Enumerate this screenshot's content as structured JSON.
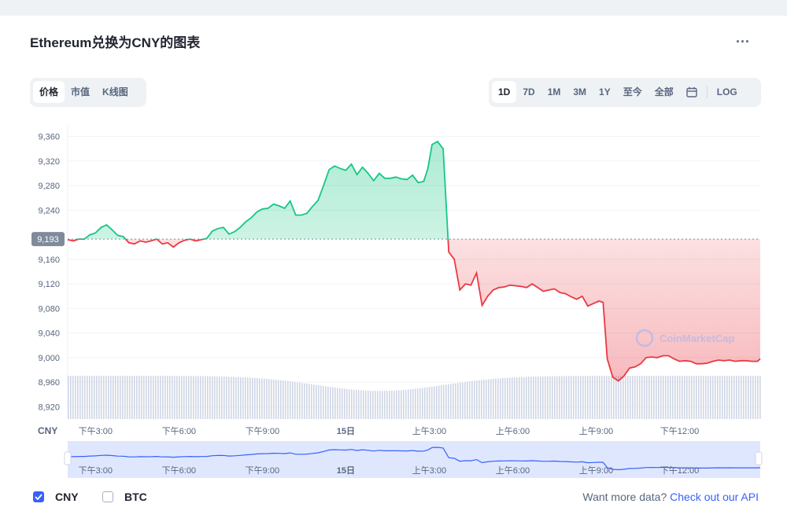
{
  "header": {
    "title": "Ethereum兑换为CNY的图表",
    "more": "..."
  },
  "view_tabs": [
    {
      "label": "价格",
      "active": true
    },
    {
      "label": "市值",
      "active": false
    },
    {
      "label": "K线图",
      "active": false
    }
  ],
  "range_tabs": [
    {
      "label": "1D",
      "active": true
    },
    {
      "label": "7D",
      "active": false
    },
    {
      "label": "1M",
      "active": false
    },
    {
      "label": "3M",
      "active": false
    },
    {
      "label": "1Y",
      "active": false
    },
    {
      "label": "至今",
      "active": false
    },
    {
      "label": "全部",
      "active": false
    }
  ],
  "calendar_icon": "calendar-icon",
  "log_label": "LOG",
  "legend": [
    {
      "label": "CNY",
      "checked": true
    },
    {
      "label": "BTC",
      "checked": false
    }
  ],
  "footer": {
    "text": "Want more data?",
    "link": "Check out our API"
  },
  "colors": {
    "up": "#16c784",
    "down": "#ea3943",
    "accent": "#3861fb",
    "volume": "#cfd6e4",
    "nav_line": "#3861fb"
  },
  "chart_data": {
    "type": "area",
    "currency_label": "CNY",
    "reference_price": 9193,
    "reference_label": "9,193",
    "ylim": [
      8900,
      9380
    ],
    "yticks": [
      9360,
      9320,
      9280,
      9240,
      9160,
      9120,
      9080,
      9040,
      9000,
      8960,
      8920
    ],
    "ytick_labels": [
      "9,360",
      "9,320",
      "9,280",
      "9,240",
      "9,160",
      "9,120",
      "9,080",
      "9,040",
      "9,000",
      "8,960",
      "8,920"
    ],
    "xlim": [
      14.0,
      38.9
    ],
    "xticks": [
      15,
      18,
      21,
      24,
      27,
      30,
      33,
      36
    ],
    "xtick_labels": [
      "下午3:00",
      "下午6:00",
      "下午9:00",
      "15日",
      "上午3:00",
      "上午6:00",
      "上午9:00",
      "下午12:00"
    ],
    "watermark": "CoinMarketCap",
    "series": [
      {
        "x": [
          14.0,
          14.2,
          14.4,
          14.6,
          14.8,
          15.0,
          15.2,
          15.4,
          15.6,
          15.8,
          16.0,
          16.2,
          16.4,
          16.6,
          16.8,
          17.0,
          17.2,
          17.4,
          17.6,
          17.8,
          18.0,
          18.2,
          18.4,
          18.6,
          18.8,
          19.0,
          19.2,
          19.4,
          19.6,
          19.8,
          20.0,
          20.2,
          20.4,
          20.6,
          20.8,
          21.0,
          21.2,
          21.4,
          21.6,
          21.8,
          22.0,
          22.2,
          22.4,
          22.6,
          22.8,
          23.0,
          23.2,
          23.4,
          23.6,
          23.8,
          24.0,
          24.2,
          24.4,
          24.6,
          24.8,
          25.0,
          25.2,
          25.4,
          25.6,
          25.8,
          26.0,
          26.2,
          26.4,
          26.6,
          26.8,
          26.95,
          27.1,
          27.3,
          27.5,
          27.7,
          27.9,
          28.1,
          28.3,
          28.5,
          28.7,
          28.9,
          29.1,
          29.3,
          29.5,
          29.7,
          29.9,
          30.1,
          30.3,
          30.5,
          30.7,
          30.9,
          31.1,
          31.3,
          31.5,
          31.7,
          31.9,
          32.1,
          32.3,
          32.5,
          32.7,
          32.9,
          33.1,
          33.25,
          33.4,
          33.6,
          33.8,
          34.0,
          34.2,
          34.4,
          34.6,
          34.8,
          35.0,
          35.2,
          35.4,
          35.6,
          35.8,
          36.0,
          36.2,
          36.4,
          36.6,
          36.8,
          37.0,
          37.2,
          37.4,
          37.6,
          37.8,
          38.0,
          38.2,
          38.4,
          38.6,
          38.8,
          38.9
        ],
        "values": [
          9192,
          9190,
          9193,
          9193,
          9200,
          9203,
          9212,
          9216,
          9208,
          9199,
          9197,
          9187,
          9185,
          9190,
          9188,
          9190,
          9193,
          9185,
          9187,
          9180,
          9187,
          9191,
          9193,
          9190,
          9192,
          9194,
          9206,
          9210,
          9212,
          9201,
          9205,
          9212,
          9221,
          9228,
          9237,
          9242,
          9243,
          9250,
          9247,
          9243,
          9255,
          9232,
          9232,
          9235,
          9246,
          9256,
          9280,
          9306,
          9312,
          9308,
          9305,
          9315,
          9298,
          9310,
          9300,
          9288,
          9300,
          9292,
          9292,
          9294,
          9291,
          9290,
          9297,
          9285,
          9287,
          9308,
          9347,
          9352,
          9340,
          9172,
          9160,
          9110,
          9120,
          9118,
          9138,
          9085,
          9100,
          9110,
          9114,
          9115,
          9118,
          9117,
          9116,
          9114,
          9120,
          9114,
          9108,
          9110,
          9112,
          9106,
          9104,
          9099,
          9095,
          9100,
          9084,
          9088,
          9092,
          9090,
          8998,
          8968,
          8962,
          8970,
          8983,
          8985,
          8990,
          9000,
          9001,
          9000,
          9003,
          9003,
          8998,
          8994,
          8995,
          8994,
          8990,
          8990,
          8991,
          8994,
          8996,
          8995,
          8996,
          8994,
          8995,
          8995,
          8994,
          8994,
          8998
        ]
      }
    ]
  }
}
